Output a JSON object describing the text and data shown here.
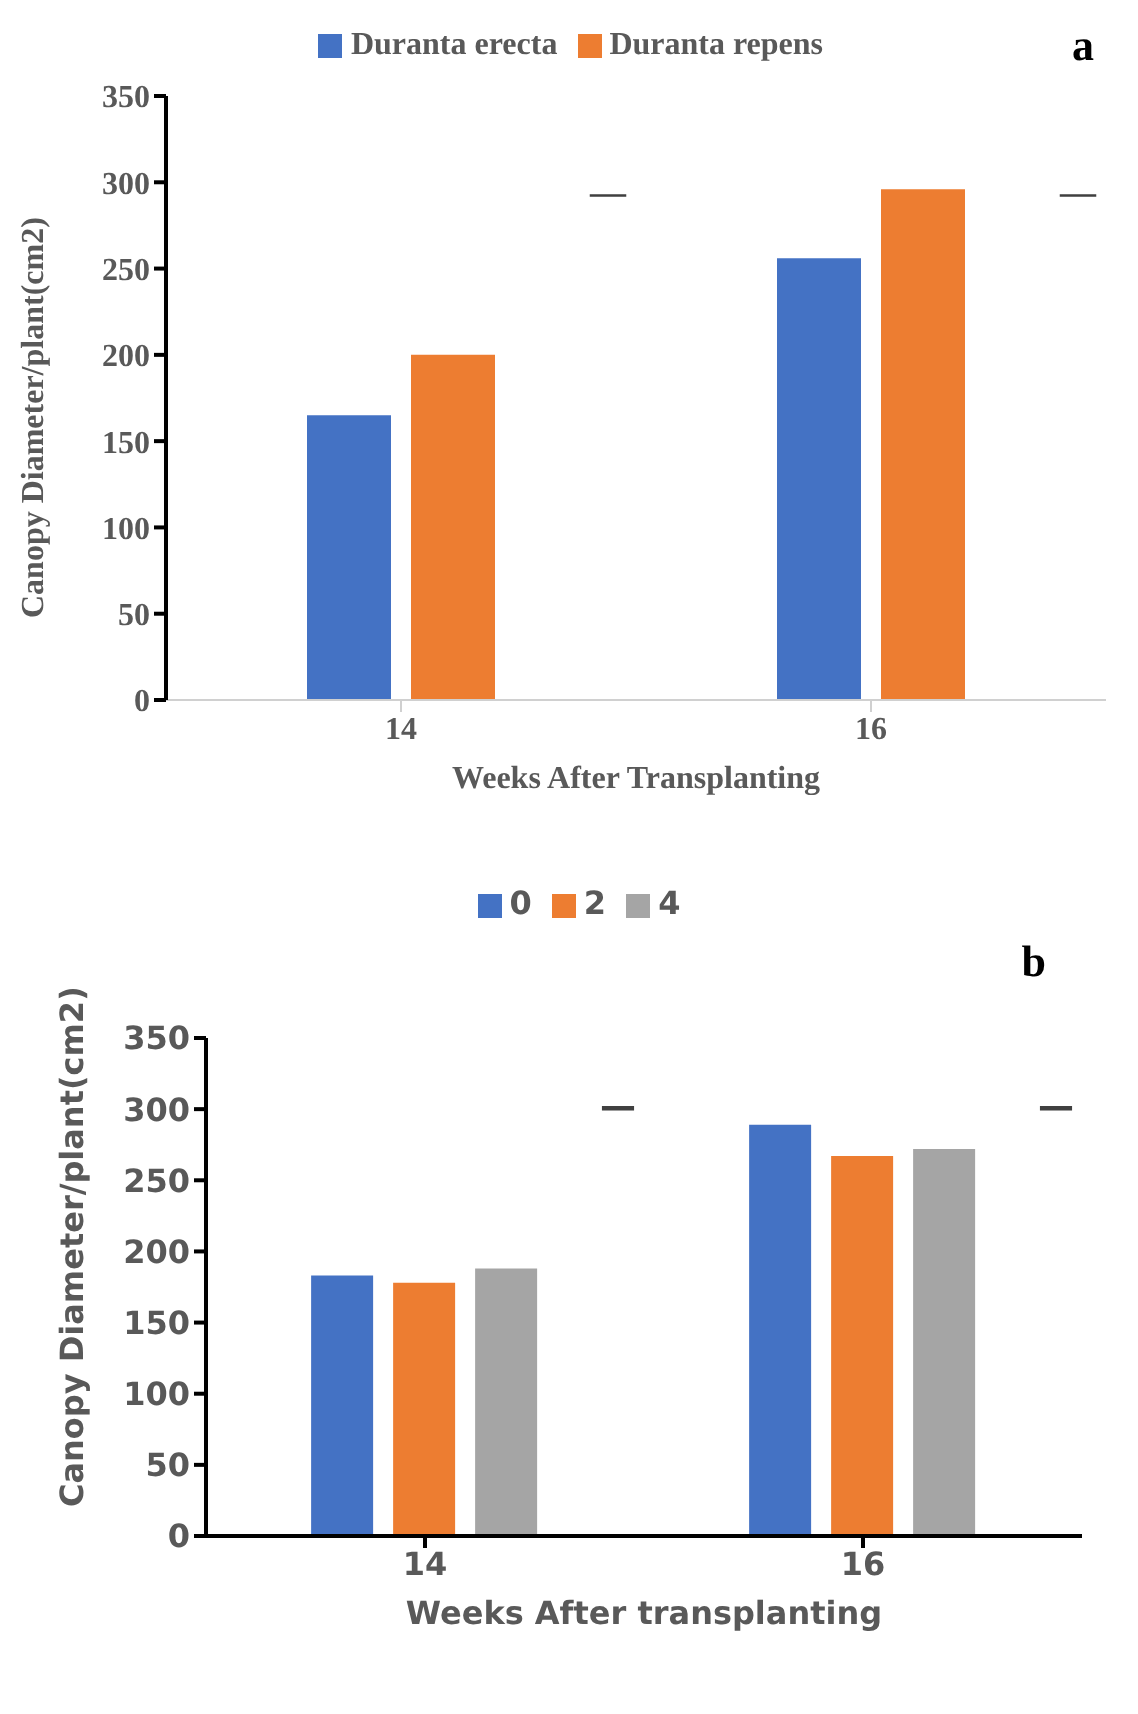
{
  "chart_data": [
    {
      "type": "bar",
      "title": "a",
      "categories": [
        "14",
        "16"
      ],
      "xlabel": "Weeks After Transplanting",
      "ylabel": "Canopy Diameter/plant(cm2)",
      "ylim": [
        0,
        350
      ],
      "yticks": [
        0,
        50,
        100,
        150,
        200,
        250,
        300,
        350
      ],
      "legend": "top",
      "grid": false,
      "series": [
        {
          "name": "Duranta erecta",
          "color": "#4472c4",
          "values": [
            165,
            256
          ]
        },
        {
          "name": "Duranta repens",
          "color": "#ed7d31",
          "values": [
            200,
            296
          ]
        }
      ],
      "annotations": [
        "—",
        "—"
      ]
    },
    {
      "type": "bar",
      "title": "b",
      "categories": [
        "14",
        "16"
      ],
      "xlabel": "Weeks After transplanting",
      "ylabel": "Canopy Diameter/plant(cm2)",
      "ylim": [
        0,
        350
      ],
      "yticks": [
        0,
        50,
        100,
        150,
        200,
        250,
        300,
        350
      ],
      "legend": "top",
      "grid": false,
      "series": [
        {
          "name": "0",
          "color": "#4472c4",
          "values": [
            183,
            289
          ]
        },
        {
          "name": "2",
          "color": "#ed7d31",
          "values": [
            178,
            267
          ]
        },
        {
          "name": "4",
          "color": "#a5a5a5",
          "values": [
            188,
            272
          ]
        }
      ],
      "annotations": [
        "—",
        "—"
      ]
    }
  ]
}
